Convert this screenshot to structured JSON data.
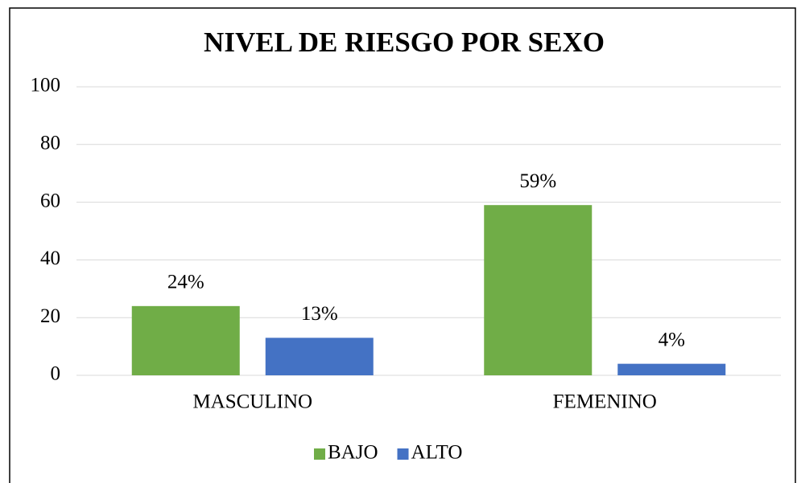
{
  "chart_data": {
    "type": "bar",
    "title": "NIVEL DE RIESGO  POR SEXO",
    "categories": [
      "MASCULINO",
      "FEMENINO"
    ],
    "series": [
      {
        "name": "BAJO",
        "color": "#70ad47",
        "values": [
          24,
          59
        ],
        "value_labels": [
          "24%",
          "59%"
        ]
      },
      {
        "name": "ALTO",
        "color": "#4472c4",
        "values": [
          13,
          4
        ],
        "value_labels": [
          "13%",
          "4%"
        ]
      }
    ],
    "ylim": [
      0,
      100
    ],
    "yticks": [
      0,
      20,
      40,
      60,
      80,
      100
    ],
    "grid": true,
    "legend": "bottom"
  }
}
